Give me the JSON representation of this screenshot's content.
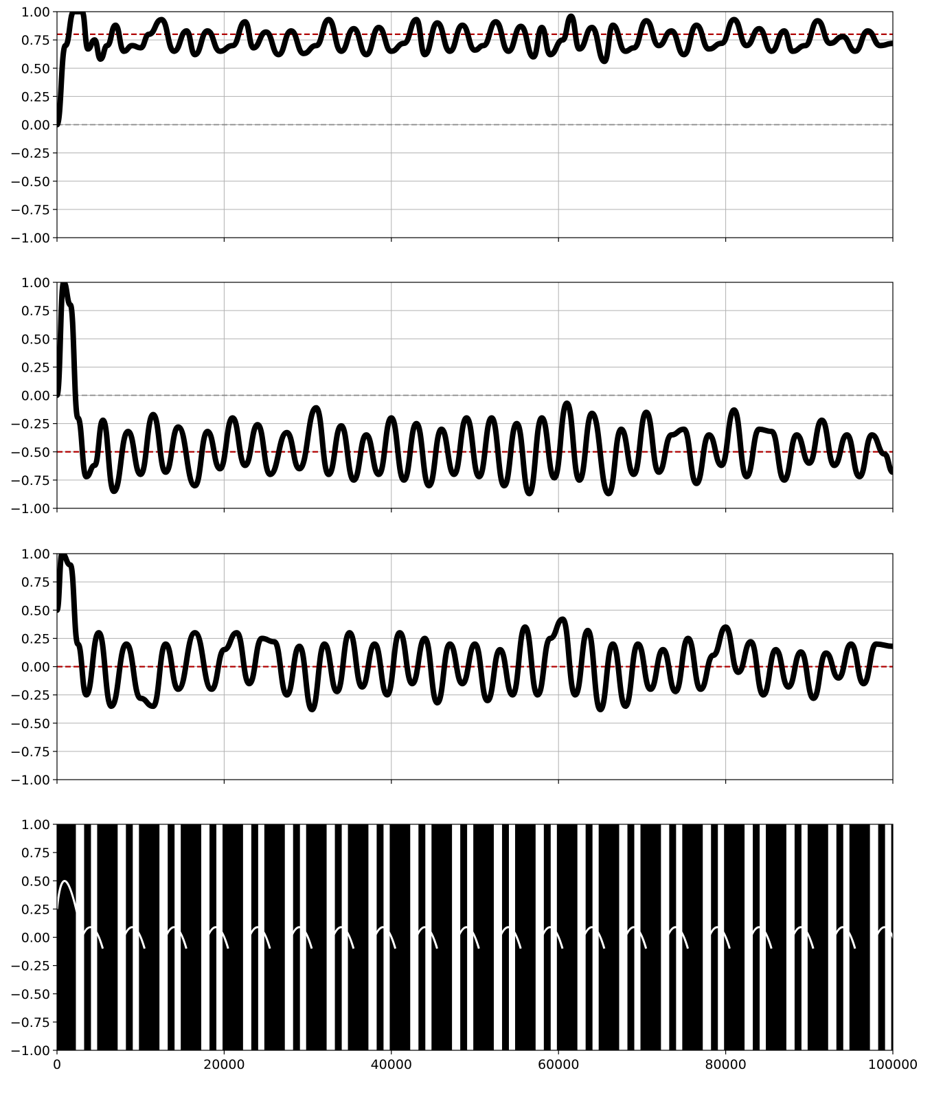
{
  "chart_data": [
    {
      "type": "line",
      "title": "",
      "xlabel": "",
      "ylabel": "",
      "xlim": [
        0,
        100000
      ],
      "ylim": [
        -1,
        1
      ],
      "grid": true,
      "legend": "none",
      "x_ticks": [
        "0",
        "20000",
        "40000",
        "60000",
        "80000",
        "100000"
      ],
      "y_ticks": [
        "1.00",
        "0.75",
        "0.50",
        "0.25",
        "0.00",
        "−0.25",
        "−0.50",
        "−0.75",
        "−1.00"
      ],
      "reference_lines": [
        {
          "y": 0.8,
          "color": "#b00000",
          "style": "dashed"
        },
        {
          "y": 0.0,
          "color": "#888888",
          "style": "dashed"
        }
      ],
      "series": [
        {
          "color": "#000000",
          "x": [
            0,
            1000,
            2000,
            3000,
            3700,
            4500,
            5200,
            6000,
            7000,
            8000,
            9000,
            10000,
            11000,
            12500,
            14000,
            15500,
            16500,
            18000,
            19500,
            21000,
            22500,
            23500,
            25000,
            26500,
            28000,
            29500,
            31000,
            32500,
            34000,
            35500,
            37000,
            38500,
            40000,
            41500,
            43000,
            44000,
            45500,
            47000,
            48500,
            50000,
            51000,
            52500,
            54000,
            55500,
            57000,
            58000,
            59000,
            60500,
            61500,
            62500,
            64000,
            65500,
            66500,
            68000,
            69000,
            70500,
            72000,
            73500,
            75000,
            76500,
            78000,
            79500,
            81000,
            82500,
            84000,
            85500,
            87000,
            88000,
            89500,
            91000,
            92500,
            94000,
            95500,
            97000,
            98500,
            100000
          ],
          "y": [
            0.0,
            0.7,
            1.0,
            1.0,
            0.67,
            0.75,
            0.58,
            0.7,
            0.88,
            0.65,
            0.7,
            0.68,
            0.8,
            0.93,
            0.65,
            0.83,
            0.62,
            0.83,
            0.65,
            0.7,
            0.91,
            0.68,
            0.82,
            0.62,
            0.83,
            0.63,
            0.7,
            0.93,
            0.65,
            0.85,
            0.62,
            0.86,
            0.65,
            0.72,
            0.93,
            0.62,
            0.9,
            0.65,
            0.88,
            0.66,
            0.7,
            0.91,
            0.65,
            0.87,
            0.6,
            0.86,
            0.62,
            0.75,
            0.96,
            0.67,
            0.86,
            0.56,
            0.88,
            0.65,
            0.68,
            0.92,
            0.7,
            0.83,
            0.62,
            0.88,
            0.67,
            0.72,
            0.93,
            0.7,
            0.85,
            0.65,
            0.83,
            0.65,
            0.7,
            0.92,
            0.72,
            0.78,
            0.65,
            0.83,
            0.7,
            0.72
          ]
        }
      ]
    },
    {
      "type": "line",
      "title": "",
      "xlabel": "",
      "ylabel": "",
      "xlim": [
        0,
        100000
      ],
      "ylim": [
        -1,
        1
      ],
      "grid": true,
      "legend": "none",
      "x_ticks": [
        "0",
        "20000",
        "40000",
        "60000",
        "80000",
        "100000"
      ],
      "y_ticks": [
        "1.00",
        "0.75",
        "0.50",
        "0.25",
        "0.00",
        "−0.25",
        "−0.50",
        "−0.75",
        "−1.00"
      ],
      "reference_lines": [
        {
          "y": 0.0,
          "color": "#888888",
          "style": "dashed"
        },
        {
          "y": -0.5,
          "color": "#b00000",
          "style": "dashed"
        }
      ],
      "series": [
        {
          "color": "#000000",
          "x": [
            0,
            800,
            1600,
            2500,
            3500,
            4500,
            5500,
            6800,
            8500,
            10000,
            11500,
            13000,
            14500,
            16500,
            18000,
            19500,
            21000,
            22500,
            24000,
            25500,
            27500,
            29000,
            31000,
            32500,
            34000,
            35500,
            37000,
            38500,
            40000,
            41500,
            43000,
            44500,
            46000,
            47500,
            49000,
            50500,
            52000,
            53500,
            55000,
            56500,
            58000,
            59500,
            61000,
            62500,
            64000,
            66000,
            67500,
            69000,
            70500,
            72000,
            73500,
            75000,
            76500,
            78000,
            79500,
            81000,
            82500,
            84000,
            85500,
            87000,
            88500,
            90000,
            91500,
            93000,
            94500,
            96000,
            97500,
            99000,
            100000
          ],
          "y": [
            0.0,
            1.0,
            0.8,
            -0.2,
            -0.72,
            -0.62,
            -0.22,
            -0.85,
            -0.32,
            -0.7,
            -0.17,
            -0.68,
            -0.28,
            -0.8,
            -0.32,
            -0.65,
            -0.2,
            -0.62,
            -0.26,
            -0.7,
            -0.33,
            -0.65,
            -0.11,
            -0.7,
            -0.27,
            -0.75,
            -0.35,
            -0.7,
            -0.2,
            -0.75,
            -0.25,
            -0.8,
            -0.3,
            -0.7,
            -0.2,
            -0.72,
            -0.2,
            -0.8,
            -0.25,
            -0.87,
            -0.2,
            -0.73,
            -0.07,
            -0.75,
            -0.16,
            -0.87,
            -0.3,
            -0.7,
            -0.15,
            -0.68,
            -0.35,
            -0.3,
            -0.78,
            -0.35,
            -0.62,
            -0.13,
            -0.72,
            -0.3,
            -0.32,
            -0.75,
            -0.35,
            -0.6,
            -0.22,
            -0.62,
            -0.35,
            -0.72,
            -0.35,
            -0.52,
            -0.68
          ]
        }
      ]
    },
    {
      "type": "line",
      "title": "",
      "xlabel": "",
      "ylabel": "",
      "xlim": [
        0,
        100000
      ],
      "ylim": [
        -1,
        1
      ],
      "grid": true,
      "legend": "none",
      "x_ticks": [
        "0",
        "20000",
        "40000",
        "60000",
        "80000",
        "100000"
      ],
      "y_ticks": [
        "1.00",
        "0.75",
        "0.50",
        "0.25",
        "0.00",
        "−0.25",
        "−0.50",
        "−0.75",
        "−1.00"
      ],
      "reference_lines": [
        {
          "y": 0.0,
          "color": "#888888",
          "style": "dashed"
        },
        {
          "y": 0.0,
          "color": "#b00000",
          "style": "dashed"
        }
      ],
      "series": [
        {
          "color": "#000000",
          "x": [
            0,
            600,
            1600,
            2500,
            3500,
            5000,
            6500,
            8300,
            10000,
            11500,
            13000,
            14500,
            16500,
            18500,
            20000,
            21500,
            23000,
            24500,
            26000,
            27500,
            29000,
            30500,
            32000,
            33500,
            35000,
            36500,
            38000,
            39500,
            41000,
            42500,
            44000,
            45500,
            47000,
            48500,
            50000,
            51500,
            53000,
            54500,
            56000,
            57500,
            59000,
            60500,
            62000,
            63500,
            65000,
            66500,
            68000,
            69500,
            71000,
            72500,
            74000,
            75500,
            77000,
            78500,
            80000,
            81500,
            83000,
            84500,
            86000,
            87500,
            89000,
            90500,
            92000,
            93500,
            95000,
            96500,
            98000,
            100000
          ],
          "y": [
            0.5,
            1.0,
            0.9,
            0.2,
            -0.25,
            0.3,
            -0.35,
            0.2,
            -0.28,
            -0.35,
            0.2,
            -0.2,
            0.3,
            -0.2,
            0.15,
            0.3,
            -0.15,
            0.25,
            0.22,
            -0.25,
            0.18,
            -0.38,
            0.2,
            -0.22,
            0.3,
            -0.18,
            0.2,
            -0.25,
            0.3,
            -0.15,
            0.25,
            -0.32,
            0.2,
            -0.15,
            0.2,
            -0.3,
            0.15,
            -0.25,
            0.35,
            -0.25,
            0.25,
            0.42,
            -0.25,
            0.32,
            -0.38,
            0.2,
            -0.35,
            0.2,
            -0.2,
            0.15,
            -0.22,
            0.25,
            -0.2,
            0.1,
            0.35,
            -0.05,
            0.22,
            -0.25,
            0.15,
            -0.18,
            0.13,
            -0.28,
            0.12,
            -0.1,
            0.2,
            -0.15,
            0.2,
            0.18
          ]
        }
      ]
    },
    {
      "type": "line",
      "title": "",
      "xlabel": "",
      "ylabel": "",
      "xlim": [
        0,
        100000
      ],
      "ylim": [
        -1,
        1
      ],
      "grid": true,
      "legend": "none",
      "x_ticks": [
        "0",
        "20000",
        "40000",
        "60000",
        "80000",
        "100000"
      ],
      "y_ticks": [
        "1.00",
        "0.75",
        "0.50",
        "0.25",
        "0.00",
        "−0.25",
        "−0.50",
        "−0.75",
        "−1.00"
      ],
      "reference_lines": [
        {
          "y": 0.0,
          "color": "#888888",
          "style": "dashed"
        },
        {
          "y": 0.0,
          "color": "#b00000",
          "style": "dashed"
        }
      ],
      "series": [
        {
          "color": "#000000",
          "note_period": 5000,
          "x": [
            0,
            100000
          ],
          "y": [
            0.25,
            0.05
          ]
        }
      ]
    }
  ]
}
